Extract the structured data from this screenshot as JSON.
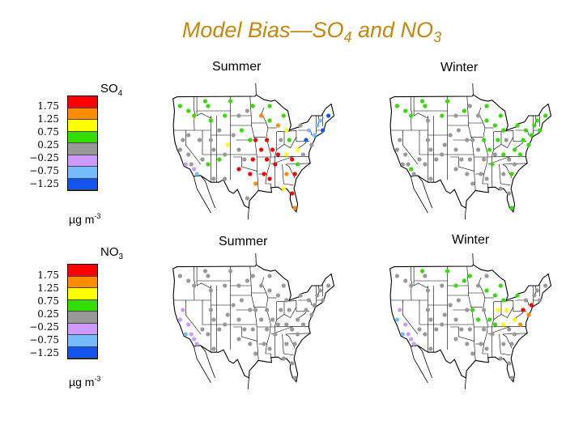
{
  "title": {
    "prefix": "Model Bias—SO",
    "sub1": "4",
    "mid": " and NO",
    "sub2": "3"
  },
  "seasons": {
    "summer": "Summer",
    "winter": "Winter"
  },
  "species": {
    "so4": {
      "base": "SO",
      "sub": "4"
    },
    "no3": {
      "base": "NO",
      "sub": "3"
    }
  },
  "unit": {
    "base": "µg m",
    "exp": "-3"
  },
  "legend": {
    "ticks": [
      "1.75",
      "1.25",
      "0.75",
      "0.25",
      "−0.25",
      "−0.75",
      "−1.25"
    ],
    "colors": [
      "#ff0000",
      "#ff8c00",
      "#ffff00",
      "#33dd00",
      "#999999",
      "#cc99ff",
      "#77bbff",
      "#1155ee"
    ]
  },
  "map_colors": {
    "land": "#ffffff",
    "ocean": "#ffffff",
    "border": "#000000"
  },
  "panels": [
    {
      "id": "so4-summer",
      "dots": [
        [
          -122,
          47,
          3
        ],
        [
          -119,
          46,
          3
        ],
        [
          -117,
          45,
          3
        ],
        [
          -112,
          47,
          3
        ],
        [
          -113,
          48,
          3
        ],
        [
          -104,
          48,
          3
        ],
        [
          -111,
          44,
          3
        ],
        [
          -106,
          45,
          3
        ],
        [
          -121,
          40,
          4
        ],
        [
          -122,
          38,
          4
        ],
        [
          -119,
          37,
          4
        ],
        [
          -118,
          35,
          4
        ],
        [
          -120,
          35,
          5
        ],
        [
          -117,
          34,
          5
        ],
        [
          -116,
          33,
          6
        ],
        [
          -114,
          36,
          4
        ],
        [
          -111,
          40,
          4
        ],
        [
          -110,
          38,
          4
        ],
        [
          -112,
          35,
          3
        ],
        [
          -110,
          32,
          4
        ],
        [
          -108,
          36,
          3
        ],
        [
          -106,
          37,
          4
        ],
        [
          -105,
          39,
          2
        ],
        [
          -103,
          41,
          4
        ],
        [
          -101,
          38,
          4
        ],
        [
          -101,
          45,
          4
        ],
        [
          -98,
          46,
          4
        ],
        [
          -96,
          47,
          3
        ],
        [
          -100,
          42,
          3
        ],
        [
          -97,
          40,
          3
        ],
        [
          -99,
          36,
          4
        ],
        [
          -97,
          33,
          0
        ],
        [
          -101,
          34,
          0
        ],
        [
          -95,
          31,
          1
        ],
        [
          -96,
          36,
          0
        ],
        [
          -93,
          38,
          0
        ],
        [
          -95,
          40,
          0
        ],
        [
          -91,
          40,
          0
        ],
        [
          -89,
          38,
          0
        ],
        [
          -91,
          36,
          0
        ],
        [
          -92,
          33,
          0
        ],
        [
          -90,
          32,
          0
        ],
        [
          -88,
          35,
          0
        ],
        [
          -87,
          37,
          0
        ],
        [
          -93,
          45,
          1
        ],
        [
          -90,
          44,
          3
        ],
        [
          -87,
          43,
          1
        ],
        [
          -84,
          42,
          2
        ],
        [
          -86,
          40,
          4
        ],
        [
          -83,
          40,
          3
        ],
        [
          -84,
          37,
          2
        ],
        [
          -82,
          36,
          0
        ],
        [
          -80,
          38,
          2
        ],
        [
          -78,
          37,
          4
        ],
        [
          -80,
          35,
          3
        ],
        [
          -81,
          33,
          0
        ],
        [
          -84,
          33,
          1
        ],
        [
          -85,
          30,
          2
        ],
        [
          -82,
          29,
          0
        ],
        [
          -81,
          26,
          1
        ],
        [
          -77,
          40,
          7
        ],
        [
          -76,
          42,
          6
        ],
        [
          -74,
          41,
          6
        ],
        [
          -75,
          39,
          4
        ],
        [
          -73,
          43,
          6
        ],
        [
          -71,
          42,
          7
        ],
        [
          -72,
          44,
          6
        ],
        [
          -69,
          45,
          7
        ],
        [
          -90,
          47,
          3
        ],
        [
          -85,
          45,
          3
        ],
        [
          -79,
          43,
          4
        ],
        [
          -98,
          28,
          4
        ],
        [
          -106,
          32,
          4
        ],
        [
          -115,
          40,
          4
        ],
        [
          -119,
          41,
          4
        ],
        [
          -108,
          42,
          4
        ]
      ]
    },
    {
      "id": "so4-winter",
      "dots": [
        [
          -122,
          47,
          3
        ],
        [
          -119,
          46,
          3
        ],
        [
          -117,
          45,
          3
        ],
        [
          -112,
          47,
          3
        ],
        [
          -113,
          48,
          3
        ],
        [
          -104,
          48,
          3
        ],
        [
          -111,
          44,
          4
        ],
        [
          -106,
          45,
          3
        ],
        [
          -121,
          40,
          4
        ],
        [
          -122,
          38,
          4
        ],
        [
          -119,
          37,
          4
        ],
        [
          -118,
          35,
          4
        ],
        [
          -120,
          35,
          4
        ],
        [
          -117,
          34,
          3
        ],
        [
          -116,
          33,
          4
        ],
        [
          -114,
          36,
          4
        ],
        [
          -111,
          40,
          4
        ],
        [
          -110,
          38,
          4
        ],
        [
          -112,
          35,
          4
        ],
        [
          -110,
          32,
          4
        ],
        [
          -108,
          36,
          4
        ],
        [
          -106,
          37,
          4
        ],
        [
          -105,
          39,
          4
        ],
        [
          -103,
          41,
          4
        ],
        [
          -101,
          38,
          4
        ],
        [
          -101,
          45,
          4
        ],
        [
          -98,
          46,
          3
        ],
        [
          -96,
          47,
          4
        ],
        [
          -100,
          42,
          4
        ],
        [
          -97,
          40,
          4
        ],
        [
          -99,
          36,
          4
        ],
        [
          -97,
          33,
          4
        ],
        [
          -101,
          34,
          4
        ],
        [
          -95,
          31,
          4
        ],
        [
          -96,
          36,
          4
        ],
        [
          -93,
          38,
          4
        ],
        [
          -95,
          40,
          4
        ],
        [
          -91,
          40,
          3
        ],
        [
          -89,
          38,
          3
        ],
        [
          -91,
          36,
          4
        ],
        [
          -92,
          33,
          4
        ],
        [
          -90,
          32,
          4
        ],
        [
          -88,
          35,
          3
        ],
        [
          -87,
          37,
          4
        ],
        [
          -93,
          45,
          4
        ],
        [
          -90,
          44,
          3
        ],
        [
          -87,
          43,
          3
        ],
        [
          -84,
          42,
          3
        ],
        [
          -86,
          40,
          3
        ],
        [
          -83,
          40,
          4
        ],
        [
          -84,
          37,
          3
        ],
        [
          -82,
          36,
          4
        ],
        [
          -80,
          38,
          3
        ],
        [
          -78,
          37,
          3
        ],
        [
          -80,
          35,
          4
        ],
        [
          -81,
          33,
          3
        ],
        [
          -84,
          33,
          4
        ],
        [
          -85,
          30,
          4
        ],
        [
          -82,
          29,
          4
        ],
        [
          -81,
          26,
          3
        ],
        [
          -77,
          40,
          3
        ],
        [
          -76,
          42,
          3
        ],
        [
          -74,
          41,
          3
        ],
        [
          -75,
          39,
          3
        ],
        [
          -73,
          43,
          3
        ],
        [
          -71,
          42,
          3
        ],
        [
          -72,
          44,
          3
        ],
        [
          -69,
          45,
          3
        ],
        [
          -90,
          47,
          3
        ],
        [
          -85,
          45,
          3
        ],
        [
          -79,
          43,
          3
        ]
      ]
    },
    {
      "id": "no3-summer",
      "dots": [
        [
          -122,
          47,
          4
        ],
        [
          -119,
          46,
          4
        ],
        [
          -117,
          45,
          4
        ],
        [
          -112,
          47,
          4
        ],
        [
          -113,
          48,
          4
        ],
        [
          -104,
          48,
          4
        ],
        [
          -111,
          44,
          4
        ],
        [
          -106,
          45,
          4
        ],
        [
          -121,
          40,
          5
        ],
        [
          -122,
          38,
          5
        ],
        [
          -119,
          37,
          5
        ],
        [
          -118,
          35,
          5
        ],
        [
          -120,
          35,
          6
        ],
        [
          -117,
          34,
          5
        ],
        [
          -116,
          33,
          5
        ],
        [
          -114,
          36,
          4
        ],
        [
          -111,
          40,
          4
        ],
        [
          -110,
          38,
          4
        ],
        [
          -112,
          35,
          4
        ],
        [
          -110,
          32,
          4
        ],
        [
          -108,
          36,
          4
        ],
        [
          -106,
          37,
          4
        ],
        [
          -105,
          39,
          4
        ],
        [
          -103,
          41,
          4
        ],
        [
          -101,
          38,
          4
        ],
        [
          -101,
          45,
          4
        ],
        [
          -98,
          46,
          4
        ],
        [
          -96,
          47,
          4
        ],
        [
          -100,
          42,
          4
        ],
        [
          -97,
          40,
          4
        ],
        [
          -99,
          36,
          4
        ],
        [
          -97,
          33,
          4
        ],
        [
          -101,
          34,
          4
        ],
        [
          -95,
          31,
          4
        ],
        [
          -96,
          36,
          4
        ],
        [
          -93,
          38,
          4
        ],
        [
          -95,
          40,
          4
        ],
        [
          -91,
          40,
          4
        ],
        [
          -89,
          38,
          4
        ],
        [
          -91,
          36,
          4
        ],
        [
          -92,
          33,
          4
        ],
        [
          -90,
          32,
          4
        ],
        [
          -88,
          35,
          4
        ],
        [
          -87,
          37,
          4
        ],
        [
          -93,
          45,
          4
        ],
        [
          -90,
          44,
          4
        ],
        [
          -87,
          43,
          4
        ],
        [
          -84,
          42,
          4
        ],
        [
          -86,
          40,
          4
        ],
        [
          -83,
          40,
          4
        ],
        [
          -84,
          37,
          4
        ],
        [
          -82,
          36,
          4
        ],
        [
          -80,
          38,
          4
        ],
        [
          -78,
          37,
          4
        ],
        [
          -80,
          35,
          4
        ],
        [
          -81,
          33,
          4
        ],
        [
          -84,
          33,
          4
        ],
        [
          -85,
          30,
          4
        ],
        [
          -82,
          29,
          4
        ],
        [
          -81,
          26,
          4
        ],
        [
          -77,
          40,
          4
        ],
        [
          -76,
          42,
          4
        ],
        [
          -74,
          41,
          4
        ],
        [
          -75,
          39,
          4
        ],
        [
          -73,
          43,
          4
        ],
        [
          -71,
          42,
          4
        ],
        [
          -72,
          44,
          4
        ],
        [
          -69,
          45,
          4
        ],
        [
          -90,
          47,
          4
        ],
        [
          -85,
          45,
          4
        ],
        [
          -79,
          43,
          4
        ]
      ]
    },
    {
      "id": "no3-winter",
      "dots": [
        [
          -122,
          47,
          4
        ],
        [
          -119,
          46,
          4
        ],
        [
          -117,
          45,
          4
        ],
        [
          -112,
          47,
          4
        ],
        [
          -113,
          48,
          3
        ],
        [
          -104,
          48,
          3
        ],
        [
          -111,
          44,
          4
        ],
        [
          -106,
          45,
          4
        ],
        [
          -121,
          40,
          5
        ],
        [
          -122,
          38,
          6
        ],
        [
          -119,
          37,
          5
        ],
        [
          -118,
          35,
          5
        ],
        [
          -120,
          35,
          6
        ],
        [
          -117,
          34,
          5
        ],
        [
          -116,
          33,
          5
        ],
        [
          -114,
          36,
          4
        ],
        [
          -111,
          40,
          4
        ],
        [
          -110,
          38,
          4
        ],
        [
          -112,
          35,
          4
        ],
        [
          -110,
          32,
          4
        ],
        [
          -108,
          36,
          4
        ],
        [
          -106,
          37,
          4
        ],
        [
          -105,
          39,
          4
        ],
        [
          -103,
          41,
          4
        ],
        [
          -101,
          38,
          4
        ],
        [
          -101,
          45,
          3
        ],
        [
          -98,
          46,
          3
        ],
        [
          -96,
          47,
          3
        ],
        [
          -100,
          42,
          4
        ],
        [
          -97,
          40,
          4
        ],
        [
          -99,
          36,
          4
        ],
        [
          -97,
          33,
          4
        ],
        [
          -101,
          34,
          4
        ],
        [
          -95,
          31,
          4
        ],
        [
          -96,
          36,
          4
        ],
        [
          -93,
          38,
          3
        ],
        [
          -95,
          40,
          3
        ],
        [
          -91,
          40,
          4
        ],
        [
          -89,
          38,
          3
        ],
        [
          -91,
          36,
          4
        ],
        [
          -92,
          33,
          4
        ],
        [
          -90,
          32,
          4
        ],
        [
          -88,
          35,
          4
        ],
        [
          -87,
          37,
          3
        ],
        [
          -93,
          45,
          4
        ],
        [
          -90,
          44,
          3
        ],
        [
          -87,
          43,
          3
        ],
        [
          -84,
          42,
          3
        ],
        [
          -86,
          40,
          2
        ],
        [
          -83,
          40,
          2
        ],
        [
          -84,
          37,
          2
        ],
        [
          -82,
          36,
          4
        ],
        [
          -80,
          38,
          2
        ],
        [
          -78,
          37,
          1
        ],
        [
          -80,
          35,
          4
        ],
        [
          -81,
          33,
          4
        ],
        [
          -84,
          33,
          4
        ],
        [
          -85,
          30,
          4
        ],
        [
          -82,
          29,
          4
        ],
        [
          -81,
          26,
          4
        ],
        [
          -77,
          40,
          0
        ],
        [
          -76,
          42,
          4
        ],
        [
          -74,
          41,
          0
        ],
        [
          -75,
          39,
          1
        ],
        [
          -73,
          43,
          4
        ],
        [
          -71,
          42,
          4
        ],
        [
          -72,
          44,
          4
        ],
        [
          -69,
          45,
          4
        ],
        [
          -90,
          47,
          4
        ],
        [
          -85,
          45,
          3
        ],
        [
          -79,
          43,
          3
        ]
      ]
    }
  ]
}
